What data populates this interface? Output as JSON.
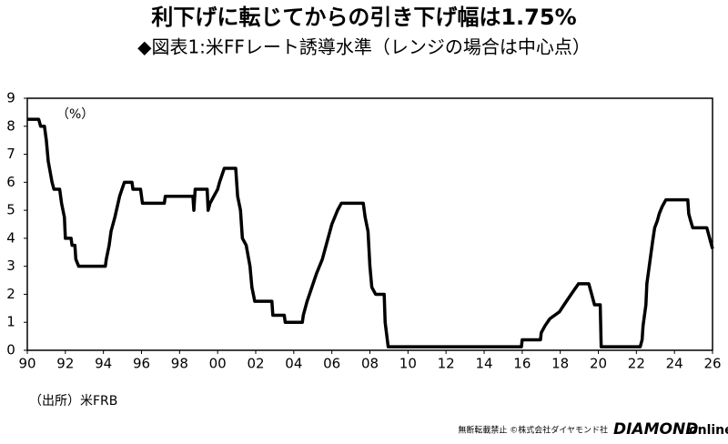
{
  "chart_data": {
    "type": "line",
    "title": "利下げに転じてからの引き下げ幅は1.75%",
    "subtitle": "◆図表1:米FFレート誘導水準（レンジの場合は中心点）",
    "y_unit_label": "（%）",
    "source": "（出所）米FRB",
    "x": [
      1990,
      1990.6,
      1990.7,
      1990.9,
      1991.0,
      1991.1,
      1991.3,
      1991.4,
      1991.7,
      1991.8,
      1991.95,
      1992.0,
      1992.3,
      1992.35,
      1992.5,
      1992.55,
      1992.7,
      1994.1,
      1994.15,
      1994.3,
      1994.4,
      1994.6,
      1994.85,
      1995.1,
      1995.5,
      1995.55,
      1995.95,
      1996.05,
      1997.2,
      1997.25,
      1998.7,
      1998.75,
      1998.82,
      1999.45,
      1999.5,
      1999.6,
      1999.8,
      2000.0,
      2000.1,
      2000.35,
      2000.95,
      2001.05,
      2001.2,
      2001.3,
      2001.5,
      2001.7,
      2001.8,
      2001.95,
      2002.85,
      2002.9,
      2003.5,
      2003.55,
      2004.45,
      2004.5,
      2004.7,
      2004.95,
      2005.2,
      2005.5,
      2005.8,
      2006.0,
      2006.3,
      2006.5,
      2007.65,
      2007.75,
      2007.9,
      2008.0,
      2008.1,
      2008.3,
      2008.75,
      2008.8,
      2008.96,
      2015.96,
      2016.0,
      2016.96,
      2017.0,
      2017.2,
      2017.45,
      2017.96,
      2018.2,
      2018.45,
      2018.7,
      2018.96,
      2019.5,
      2019.6,
      2019.7,
      2019.8,
      2020.1,
      2020.15,
      2022.2,
      2022.3,
      2022.35,
      2022.5,
      2022.55,
      2022.7,
      2022.85,
      2022.96,
      2023.1,
      2023.2,
      2023.35,
      2023.55,
      2024.7,
      2024.75,
      2024.85,
      2024.96,
      2025.7,
      2025.8,
      2025.9,
      2026.0
    ],
    "series": [
      {
        "name": "FFレート",
        "color": "#000000",
        "values": [
          8.25,
          8.25,
          8.0,
          8.0,
          7.5,
          6.75,
          6.0,
          5.75,
          5.75,
          5.25,
          4.75,
          4.0,
          4.0,
          3.75,
          3.75,
          3.25,
          3.0,
          3.0,
          3.25,
          3.75,
          4.25,
          4.75,
          5.5,
          6.0,
          6.0,
          5.75,
          5.75,
          5.25,
          5.25,
          5.5,
          5.5,
          5.0,
          5.75,
          5.75,
          5.0,
          5.25,
          5.5,
          5.75,
          6.0,
          6.5,
          6.5,
          5.5,
          5.0,
          4.0,
          3.75,
          3.0,
          2.25,
          1.75,
          1.75,
          1.25,
          1.25,
          1.0,
          1.0,
          1.25,
          1.75,
          2.25,
          2.75,
          3.25,
          4.0,
          4.5,
          5.0,
          5.25,
          5.25,
          4.75,
          4.25,
          3.0,
          2.25,
          2.0,
          2.0,
          1.0,
          0.125,
          0.125,
          0.375,
          0.375,
          0.625,
          0.875,
          1.125,
          1.375,
          1.625,
          1.875,
          2.125,
          2.375,
          2.375,
          2.125,
          1.875,
          1.625,
          1.625,
          0.125,
          0.125,
          0.375,
          0.875,
          1.625,
          2.375,
          3.125,
          3.875,
          4.375,
          4.625,
          4.875,
          5.125,
          5.375,
          5.375,
          4.875,
          4.625,
          4.375,
          4.375,
          4.125,
          3.875,
          3.625
        ]
      }
    ],
    "xlim": [
      1990,
      2026
    ],
    "xticks": [
      {
        "value": 1990,
        "label": "90"
      },
      {
        "value": 1992,
        "label": "92"
      },
      {
        "value": 1994,
        "label": "94"
      },
      {
        "value": 1996,
        "label": "96"
      },
      {
        "value": 1998,
        "label": "98"
      },
      {
        "value": 2000,
        "label": "00"
      },
      {
        "value": 2002,
        "label": "02"
      },
      {
        "value": 2004,
        "label": "04"
      },
      {
        "value": 2006,
        "label": "06"
      },
      {
        "value": 2008,
        "label": "08"
      },
      {
        "value": 2010,
        "label": "10"
      },
      {
        "value": 2012,
        "label": "12"
      },
      {
        "value": 2014,
        "label": "14"
      },
      {
        "value": 2016,
        "label": "16"
      },
      {
        "value": 2018,
        "label": "18"
      },
      {
        "value": 2020,
        "label": "20"
      },
      {
        "value": 2022,
        "label": "22"
      },
      {
        "value": 2024,
        "label": "24"
      },
      {
        "value": 2026,
        "label": "26"
      }
    ],
    "ylim": [
      0,
      9
    ],
    "yticks": [
      0,
      1,
      2,
      3,
      4,
      5,
      6,
      7,
      8,
      9
    ],
    "grid": false
  },
  "footer": {
    "notice": "無断転載禁止 ©株式会社ダイヤモンド社",
    "brand": "DIAMOND",
    "brand_suffix": "online"
  }
}
